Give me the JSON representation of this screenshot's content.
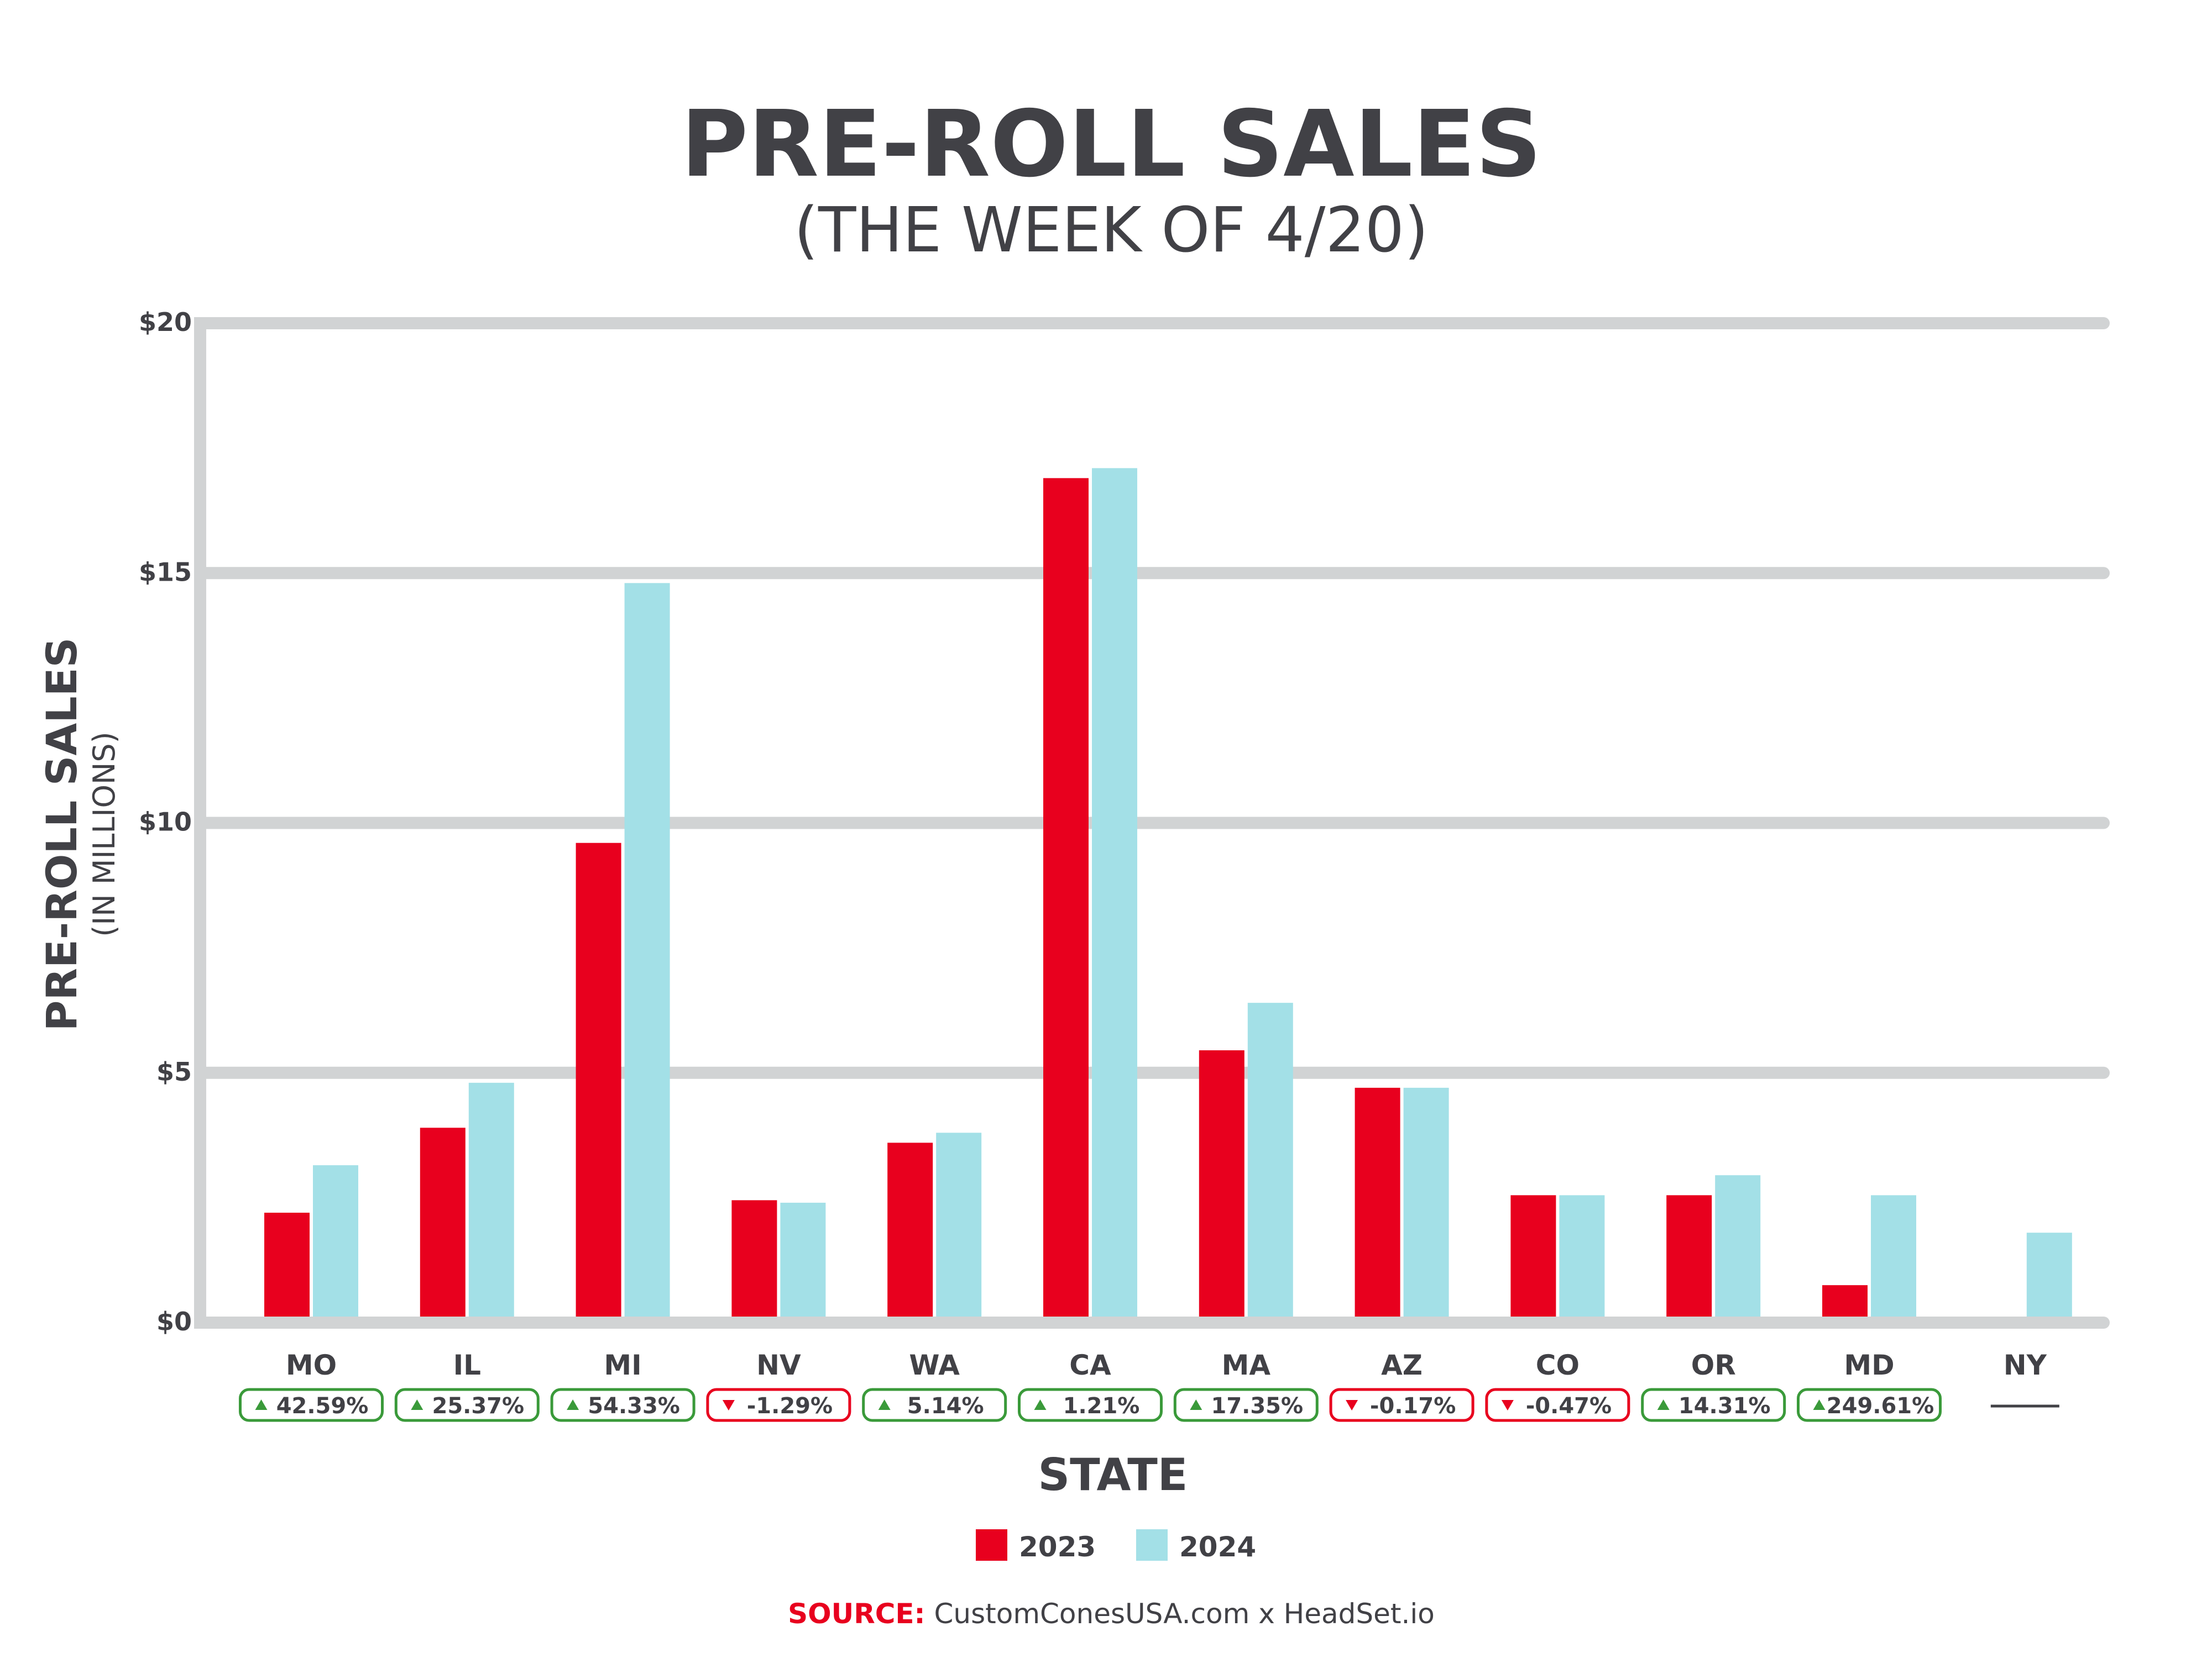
{
  "chart_data": {
    "type": "bar",
    "title": "PRE-ROLL SALES",
    "subtitle": "(THE WEEK OF 4/20)",
    "xlabel": "STATE",
    "ylabel": "PRE-ROLL SALES",
    "ylabel_sub": "(IN MILLIONS)",
    "ylim": [
      0,
      20
    ],
    "yticks": [
      0,
      5,
      10,
      15,
      20
    ],
    "ytick_labels": [
      "$0",
      "$5",
      "$10",
      "$15",
      "$20"
    ],
    "grid": true,
    "categories": [
      "MO",
      "IL",
      "MI",
      "NV",
      "WA",
      "CA",
      "MA",
      "AZ",
      "CO",
      "OR",
      "MD",
      "NY"
    ],
    "series": [
      {
        "name": "2023",
        "color": "#E8001E",
        "values": [
          2.2,
          3.9,
          9.6,
          2.45,
          3.6,
          16.9,
          5.45,
          4.7,
          2.55,
          2.55,
          0.75,
          0
        ]
      },
      {
        "name": "2024",
        "color": "#A3E0E7",
        "values": [
          3.15,
          4.8,
          14.8,
          2.4,
          3.8,
          17.1,
          6.4,
          4.7,
          2.55,
          2.95,
          2.55,
          1.8
        ]
      }
    ],
    "changes": [
      {
        "label": "42.59%",
        "direction": "up"
      },
      {
        "label": "25.37%",
        "direction": "up"
      },
      {
        "label": "54.33%",
        "direction": "up"
      },
      {
        "label": "-1.29%",
        "direction": "down"
      },
      {
        "label": "5.14%",
        "direction": "up"
      },
      {
        "label": "1.21%",
        "direction": "up"
      },
      {
        "label": "17.35%",
        "direction": "up"
      },
      {
        "label": "-0.17%",
        "direction": "down"
      },
      {
        "label": "-0.47%",
        "direction": "down"
      },
      {
        "label": "14.31%",
        "direction": "up"
      },
      {
        "label": "249.61%",
        "direction": "up"
      },
      {
        "label": "",
        "direction": "none"
      }
    ],
    "legend_position": "bottom-center",
    "up_color": "#3A9A3A",
    "down_color": "#E8001E",
    "grid_color": "#D1D3D4"
  },
  "source": {
    "label": "SOURCE:",
    "text": "CustomConesUSA.com x HeadSet.io",
    "label_color": "#E8001E"
  }
}
